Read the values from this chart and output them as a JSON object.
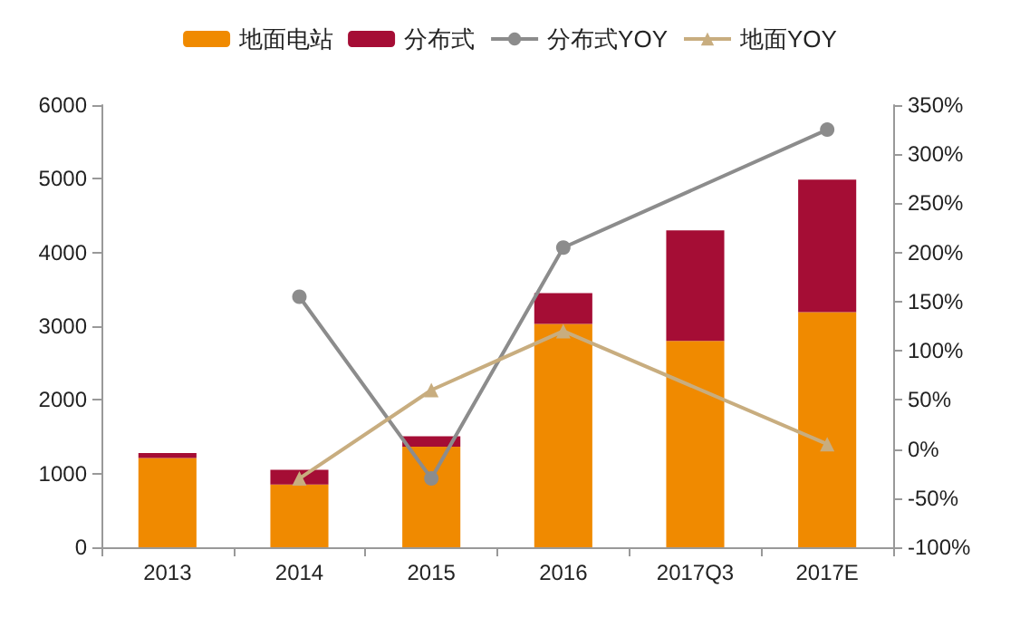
{
  "chart_data": {
    "type": "bar",
    "stacked": true,
    "categories": [
      "2013",
      "2014",
      "2015",
      "2016",
      "2017Q3",
      "2017E"
    ],
    "series": [
      {
        "name": "地面电站",
        "color": "#f08a00",
        "values": [
          1210,
          850,
          1365,
          3030,
          2800,
          3190
        ]
      },
      {
        "name": "分布式",
        "color": "#a50d35",
        "values": [
          70,
          200,
          140,
          420,
          1500,
          1800
        ]
      },
      {
        "name": "分布式YOY",
        "type": "line",
        "axis": "y2",
        "marker": "circle",
        "color": "#8c8c8c",
        "values": [
          null,
          155,
          -30,
          205,
          null,
          325
        ]
      },
      {
        "name": "地面YOY",
        "type": "line",
        "axis": "y2",
        "marker": "triangle",
        "color": "#c8ad7f",
        "values": [
          null,
          -30,
          60,
          120,
          null,
          5
        ]
      }
    ],
    "ylim": [
      0,
      6000
    ],
    "yticks": [
      0,
      1000,
      2000,
      3000,
      4000,
      5000,
      6000
    ],
    "y2lim": [
      -100,
      350
    ],
    "y2ticks": [
      {
        "value": -100,
        "label": "-100%"
      },
      {
        "value": -50,
        "label": "-50%"
      },
      {
        "value": 0,
        "label": "0%"
      },
      {
        "value": 50,
        "label": "50%"
      },
      {
        "value": 100,
        "label": "100%"
      },
      {
        "value": 150,
        "label": "150%"
      },
      {
        "value": 200,
        "label": "200%"
      },
      {
        "value": 250,
        "label": "250%"
      },
      {
        "value": 300,
        "label": "300%"
      },
      {
        "value": 350,
        "label": "350%"
      }
    ],
    "legend": "top",
    "grid": false
  }
}
